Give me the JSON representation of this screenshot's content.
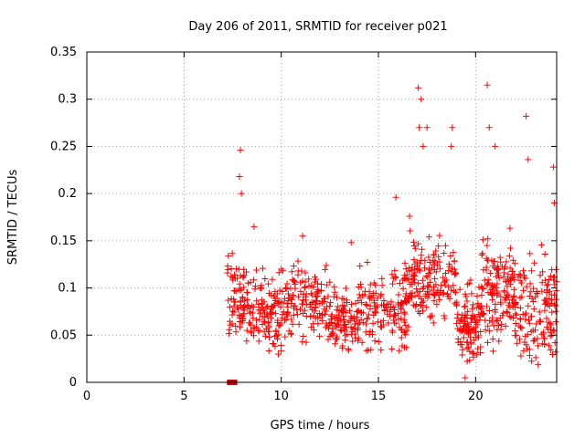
{
  "chart_data": {
    "type": "scatter",
    "title": "Day 206 of 2011, SRMTID for receiver p021",
    "xlabel": "GPS time / hours",
    "ylabel": "SRMTID / TECUs",
    "xlim": [
      0,
      24.17
    ],
    "ylim": [
      0,
      0.35
    ],
    "xticks": [
      0,
      5,
      10,
      15,
      20
    ],
    "xtick_labels": [
      "0",
      "5",
      "10",
      "15",
      "20"
    ],
    "yticks": [
      0,
      0.05,
      0.1,
      0.15,
      0.2,
      0.25,
      0.3,
      0.35
    ],
    "ytick_labels": [
      "0",
      "0.05",
      "0.1",
      "0.15",
      "0.2",
      "0.25",
      "0.3",
      "0.35"
    ],
    "grid": true,
    "marker": "+",
    "color": "#ff0000",
    "zero_marker_color": "#cc0000",
    "zero_markers": [
      7.35,
      7.6
    ],
    "peaks": [
      {
        "x": 7.9,
        "y": 0.246
      },
      {
        "x": 7.85,
        "y": 0.218
      },
      {
        "x": 7.95,
        "y": 0.2
      },
      {
        "x": 8.6,
        "y": 0.165
      },
      {
        "x": 11.1,
        "y": 0.155
      },
      {
        "x": 13.6,
        "y": 0.148
      },
      {
        "x": 15.9,
        "y": 0.196
      },
      {
        "x": 16.6,
        "y": 0.176
      },
      {
        "x": 17.05,
        "y": 0.312
      },
      {
        "x": 17.2,
        "y": 0.3
      },
      {
        "x": 17.1,
        "y": 0.27
      },
      {
        "x": 17.5,
        "y": 0.27
      },
      {
        "x": 17.3,
        "y": 0.25
      },
      {
        "x": 18.8,
        "y": 0.27
      },
      {
        "x": 18.75,
        "y": 0.25
      },
      {
        "x": 20.6,
        "y": 0.315
      },
      {
        "x": 20.7,
        "y": 0.27
      },
      {
        "x": 21.0,
        "y": 0.25
      },
      {
        "x": 22.6,
        "y": 0.282
      },
      {
        "x": 22.7,
        "y": 0.236
      },
      {
        "x": 24.0,
        "y": 0.228
      },
      {
        "x": 24.05,
        "y": 0.19
      }
    ],
    "bands": [
      {
        "x0": 7.2,
        "x1": 8.2,
        "lo": 0.03,
        "hi": 0.15,
        "n": 70
      },
      {
        "x0": 8.2,
        "x1": 10.0,
        "lo": 0.02,
        "hi": 0.13,
        "n": 120
      },
      {
        "x0": 10.0,
        "x1": 12.5,
        "lo": 0.03,
        "hi": 0.14,
        "n": 150
      },
      {
        "x0": 12.5,
        "x1": 14.0,
        "lo": 0.02,
        "hi": 0.11,
        "n": 100
      },
      {
        "x0": 14.0,
        "x1": 16.5,
        "lo": 0.02,
        "hi": 0.14,
        "n": 150
      },
      {
        "x0": 16.5,
        "x1": 19.0,
        "lo": 0.05,
        "hi": 0.17,
        "n": 160
      },
      {
        "x0": 19.0,
        "x1": 20.3,
        "lo": 0.0,
        "hi": 0.12,
        "n": 110
      },
      {
        "x0": 20.3,
        "x1": 22.0,
        "lo": 0.02,
        "hi": 0.17,
        "n": 140
      },
      {
        "x0": 22.0,
        "x1": 24.17,
        "lo": 0.0,
        "hi": 0.16,
        "n": 150
      }
    ]
  }
}
